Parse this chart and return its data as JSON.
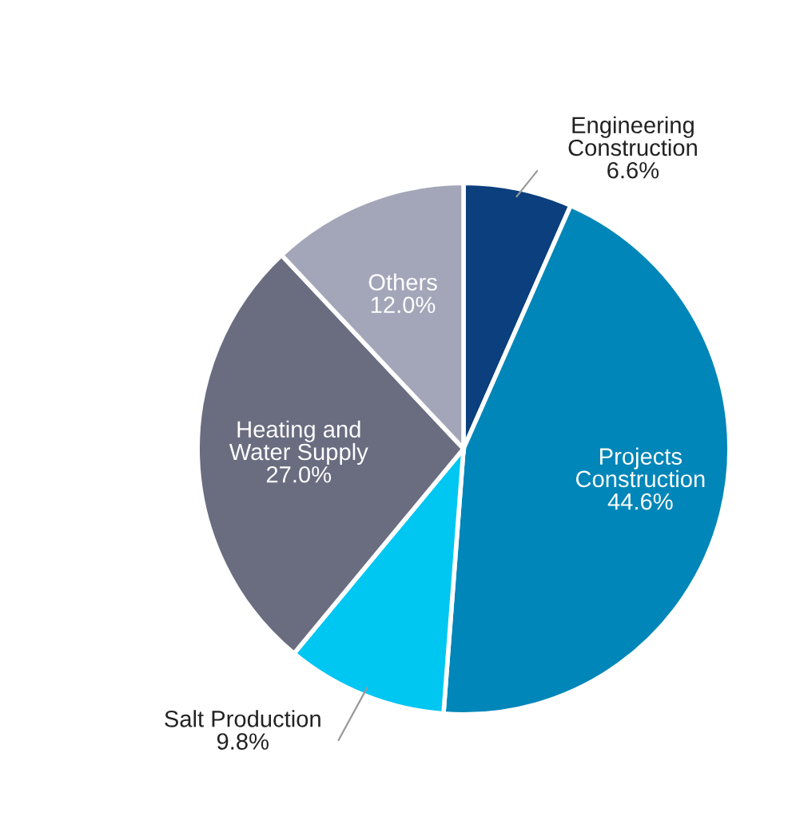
{
  "chart_data": {
    "type": "pie",
    "categories": [
      "Engineering\nConstruction",
      "Projects\nConstruction",
      "Salt Production",
      "Heating and\nWater Supply",
      "Others"
    ],
    "values": [
      6.6,
      44.6,
      9.8,
      27.0,
      12.0
    ],
    "colors": [
      "#0b3f7d",
      "#0086b8",
      "#00c6f2",
      "#6a6d80",
      "#a3a6b8"
    ],
    "value_labels": [
      "6.6%",
      "44.6%",
      "9.8%",
      "27.0%",
      "12.0%"
    ]
  }
}
